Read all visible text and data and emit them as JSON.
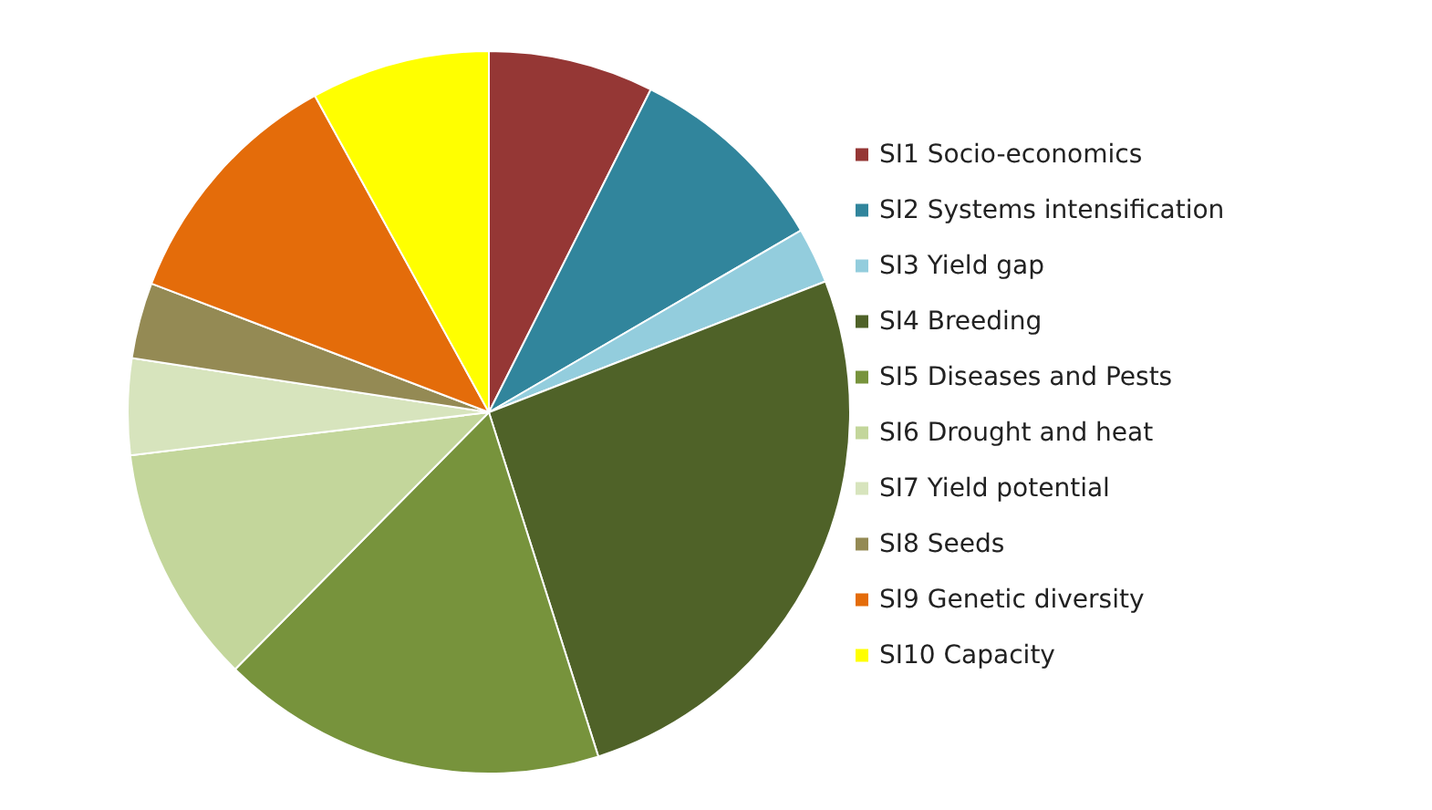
{
  "chart_data": {
    "type": "pie",
    "categories": [
      "SI1 Socio-economics",
      "SI2 Systems intensification",
      "SI3 Yield gap",
      "SI4 Breeding",
      "SI5 Diseases and Pests",
      "SI6 Drought and heat",
      "SI7 Yield potential",
      "SI8 Seeds",
      "SI9 Genetic diversity",
      "SI10 Capacity"
    ],
    "values": [
      7.4,
      9.2,
      2.5,
      26,
      17.3,
      10.7,
      4.3,
      3.4,
      11.2,
      8
    ],
    "colors": [
      "#953735",
      "#31859c",
      "#93cddd",
      "#4f6228",
      "#77933c",
      "#c3d69b",
      "#d7e4bd",
      "#948a54",
      "#e46c0a",
      "#ffff00"
    ],
    "legend": "right"
  }
}
